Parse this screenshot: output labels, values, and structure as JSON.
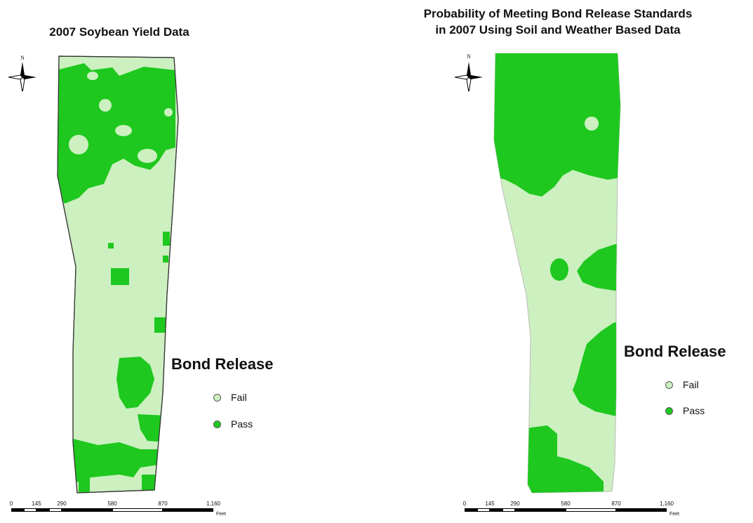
{
  "left_map": {
    "title": "2007 Soybean Yield Data",
    "north_label": "N",
    "legend": {
      "heading": "Bond Release",
      "items": [
        {
          "label": "Fail",
          "color": "#ccf0c0"
        },
        {
          "label": "Pass",
          "color": "#1ec81e"
        }
      ]
    },
    "scale": {
      "ticks": [
        "0",
        "145",
        "290",
        "580",
        "870",
        "1,160"
      ],
      "unit": "Feet"
    }
  },
  "right_map": {
    "title_line1": "Probability of Meeting Bond Release Standards",
    "title_line2": "in 2007 Using Soil and Weather Based Data",
    "north_label": "N",
    "legend": {
      "heading": "Bond Release",
      "items": [
        {
          "label": "Fail",
          "color": "#ccf0c0"
        },
        {
          "label": "Pass",
          "color": "#1ec81e"
        }
      ]
    },
    "scale": {
      "ticks": [
        "0",
        "145",
        "290",
        "580",
        "870",
        "1,160"
      ],
      "unit": "Feet"
    }
  },
  "colors": {
    "fail": "#ccf0c0",
    "pass": "#1ec81e",
    "outline": "#333333"
  }
}
